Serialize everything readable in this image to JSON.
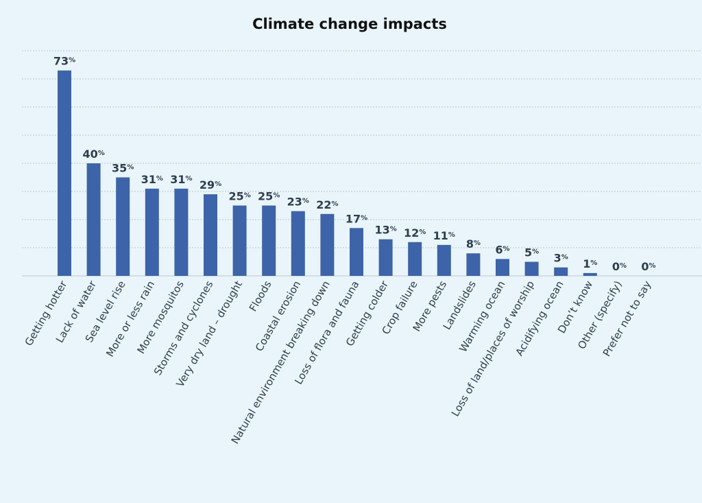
{
  "chart_data": {
    "type": "bar",
    "title": "Climate change impacts",
    "unit": "%",
    "ylim": [
      0,
      80
    ],
    "grid": true,
    "xlabel": "",
    "ylabel": "",
    "bar_color": "#3d64a8",
    "categories": [
      "Getting hotter",
      "Lack of water",
      "Sea level rise",
      "More or less rain",
      "More mosquitos",
      "Storms and cyclones",
      "Very dry land – drought",
      "Floods",
      "Coastal erosion",
      "Natural environment breaking down",
      "Loss of flora and fauna",
      "Getting colder",
      "Crop failure",
      "More pests",
      "Landslides",
      "Warming ocean",
      "Loss of land/places of worship",
      "Acidifying ocean",
      "Don’t know",
      "Other (specify)",
      "Prefer not to say"
    ],
    "values": [
      73,
      40,
      35,
      31,
      31,
      29,
      25,
      25,
      23,
      22,
      17,
      13,
      12,
      11,
      8,
      6,
      5,
      3,
      1,
      0,
      0
    ]
  }
}
